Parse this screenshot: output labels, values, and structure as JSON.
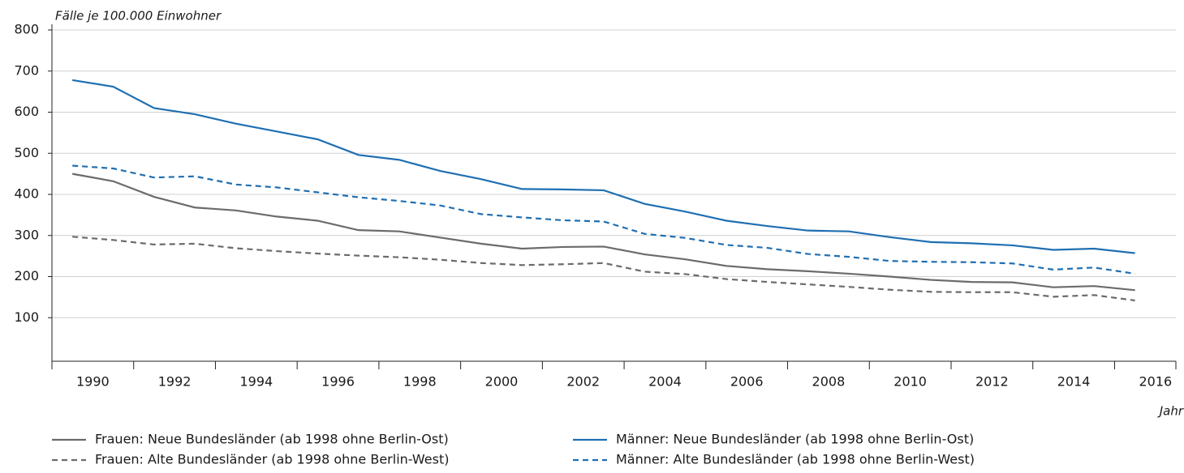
{
  "chart_data": {
    "type": "line",
    "y_axis_label": "Fälle je 100.000 Einwohner",
    "x_axis_label": "Jahr",
    "x": [
      1990,
      1991,
      1992,
      1993,
      1994,
      1995,
      1996,
      1997,
      1998,
      1999,
      2000,
      2001,
      2002,
      2003,
      2004,
      2005,
      2006,
      2007,
      2008,
      2009,
      2010,
      2011,
      2012,
      2013,
      2014,
      2015,
      2016
    ],
    "xlim": [
      1989.5,
      2017
    ],
    "xticks": [
      1990,
      1992,
      1994,
      1996,
      1998,
      2000,
      2002,
      2004,
      2006,
      2008,
      2010,
      2012,
      2014,
      2016
    ],
    "ylim": [
      0,
      800
    ],
    "yticks": [
      100,
      200,
      300,
      400,
      500,
      600,
      700,
      800
    ],
    "grid": true,
    "legend_position": "bottom",
    "series": [
      {
        "name": "Frauen: Neue Bundesländer (ab 1998 ohne Berlin-Ost)",
        "color": "#6b6b6b",
        "line_style": "solid",
        "values": [
          450,
          432,
          394,
          368,
          361,
          346,
          336,
          313,
          310,
          295,
          280,
          268,
          272,
          273,
          254,
          242,
          226,
          218,
          213,
          207,
          200,
          192,
          187,
          186,
          174,
          177,
          167
        ]
      },
      {
        "name": "Männer: Neue Bundesländer (ab 1998 ohne Berlin-Ost)",
        "color": "#1f6fb2",
        "line_style": "solid",
        "values": [
          678,
          662,
          610,
          595,
          572,
          553,
          534,
          496,
          484,
          457,
          437,
          413,
          412,
          410,
          377,
          358,
          336,
          323,
          312,
          310,
          296,
          284,
          281,
          276,
          265,
          268,
          257
        ]
      },
      {
        "name": "Frauen: Alte Bundesländer (ab 1998 ohne Berlin-West)",
        "color": "#6b6b6b",
        "line_style": "dashed",
        "values": [
          297,
          289,
          278,
          280,
          269,
          262,
          256,
          251,
          247,
          241,
          233,
          228,
          230,
          233,
          212,
          206,
          194,
          187,
          181,
          175,
          168,
          163,
          162,
          162,
          151,
          155,
          142
        ]
      },
      {
        "name": "Männer: Alte Bundesländer (ab 1998 ohne Berlin-West)",
        "color": "#1f6fb2",
        "line_style": "dashed",
        "values": [
          470,
          463,
          441,
          444,
          424,
          417,
          405,
          393,
          384,
          373,
          352,
          344,
          337,
          334,
          304,
          294,
          277,
          270,
          255,
          248,
          238,
          236,
          235,
          232,
          217,
          222,
          207
        ]
      }
    ]
  }
}
